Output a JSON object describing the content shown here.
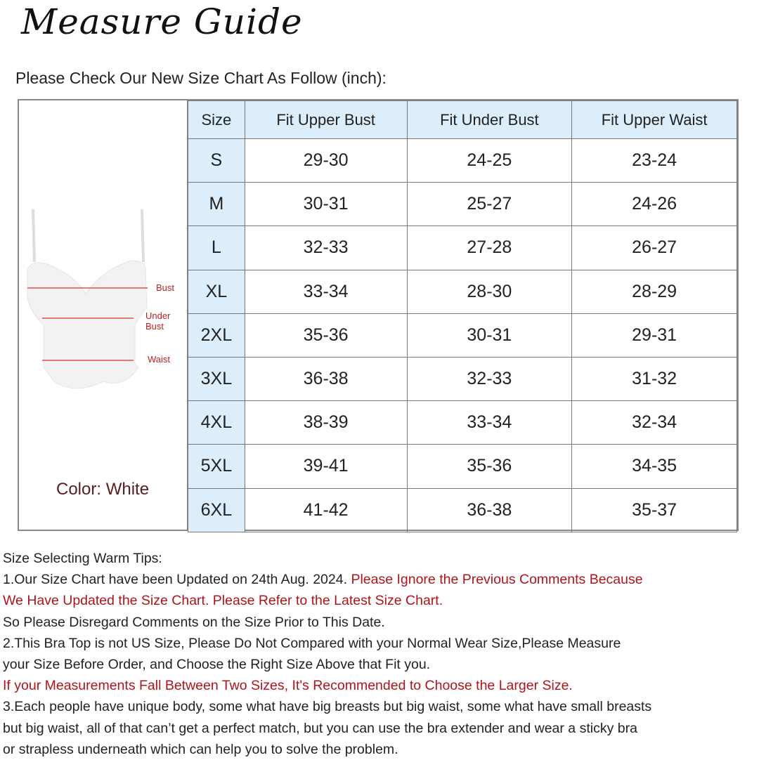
{
  "title": "Measure Guide",
  "subtitle": "Please Check Our New Size Chart As Follow (inch):",
  "figure": {
    "labels": {
      "bust": "Bust",
      "under_bust_1": "Under",
      "under_bust_2": "Bust",
      "waist": "Waist"
    },
    "color_label": "Color: White",
    "line_color": "#d9534f"
  },
  "table": {
    "headers": [
      "Size",
      "Fit Upper Bust",
      "Fit Under Bust",
      "Fit Upper Waist"
    ],
    "rows": [
      [
        "S",
        "29-30",
        "24-25",
        "23-24"
      ],
      [
        "M",
        "30-31",
        "25-27",
        "24-26"
      ],
      [
        "L",
        "32-33",
        "27-28",
        "26-27"
      ],
      [
        "XL",
        "33-34",
        "28-30",
        "28-29"
      ],
      [
        "2XL",
        "35-36",
        "30-31",
        "29-31"
      ],
      [
        "3XL",
        "36-38",
        "32-33",
        "31-32"
      ],
      [
        "4XL",
        "38-39",
        "33-34",
        "32-34"
      ],
      [
        "5XL",
        "39-41",
        "35-36",
        "34-35"
      ],
      [
        "6XL",
        "41-42",
        "36-38",
        "35-37"
      ]
    ],
    "header_bg": "#dcedfb"
  },
  "tips": {
    "heading": "Size Selecting Warm Tips:",
    "t1a": "1.Our Size Chart have been Updated on 24th Aug. 2024. ",
    "t1b": "Please Ignore the Previous Comments Because",
    "t1c": "We Have Updated the Size Chart. Please Refer to the Latest Size Chart.",
    "t1d": "So Please Disregard Comments on the Size Prior to This Date.",
    "t2a": "2.This Bra Top is not US Size, Please Do Not Compared with your Normal Wear Size,Please Measure",
    "t2b": "your Size Before Order, and Choose the Right Size Above that Fit you.",
    "t2c": "If your Measurements Fall Between Two Sizes, It's Recommended to Choose the Larger Size.",
    "t3a": "3.Each people have unique body, some what have big breasts but big waist, some what have small breasts",
    "t3b": "but big waist, all of that can’t get a perfect match, but you can use the bra extender and wear a sticky bra",
    "t3c": "or strapless underneath which can help you to solve the problem.",
    "red_color": "#b0141b"
  }
}
